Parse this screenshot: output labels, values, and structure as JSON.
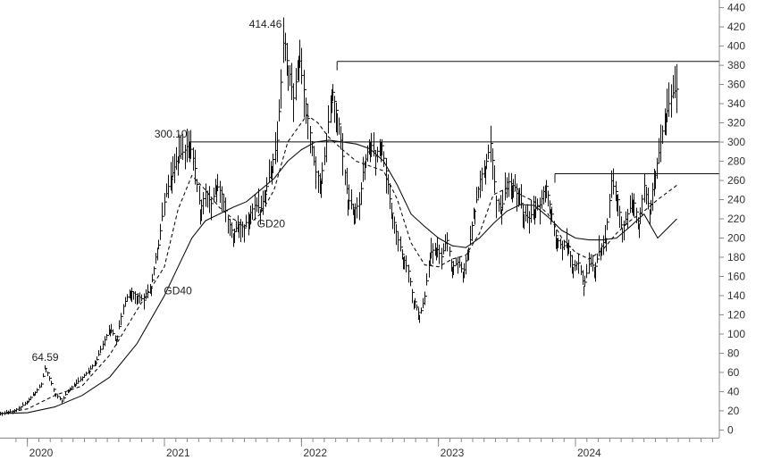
{
  "chart_data": {
    "type": "line",
    "title": "",
    "xlabel": "",
    "ylabel": "",
    "x_tick_labels": [
      "2020",
      "2021",
      "2022",
      "2023",
      "2024"
    ],
    "y_ticks": [
      0,
      20,
      40,
      60,
      80,
      100,
      120,
      140,
      160,
      180,
      200,
      220,
      240,
      260,
      280,
      300,
      320,
      340,
      360,
      380,
      400,
      420,
      440
    ],
    "ylim": [
      -8,
      448
    ],
    "xlim": [
      2019.8,
      2025.05
    ],
    "grid": false,
    "legend": "none",
    "colors": {
      "price": "#111111",
      "ma": "#111111",
      "levels": "#111111",
      "axis": "#888888"
    },
    "series": [
      {
        "name": "",
        "style": "ohlc-bars",
        "points": [
          [
            2019.8,
            17
          ],
          [
            2019.85,
            18
          ],
          [
            2019.9,
            20
          ],
          [
            2019.95,
            24
          ],
          [
            2020.0,
            30
          ],
          [
            2020.05,
            38
          ],
          [
            2020.1,
            48
          ],
          [
            2020.13,
            64.59
          ],
          [
            2020.17,
            50
          ],
          [
            2020.2,
            38
          ],
          [
            2020.25,
            30
          ],
          [
            2020.3,
            42
          ],
          [
            2020.35,
            48
          ],
          [
            2020.4,
            55
          ],
          [
            2020.45,
            62
          ],
          [
            2020.5,
            72
          ],
          [
            2020.55,
            90
          ],
          [
            2020.6,
            105
          ],
          [
            2020.65,
            95
          ],
          [
            2020.7,
            130
          ],
          [
            2020.75,
            145
          ],
          [
            2020.8,
            140
          ],
          [
            2020.85,
            135
          ],
          [
            2020.9,
            150
          ],
          [
            2020.95,
            190
          ],
          [
            2021.0,
            240
          ],
          [
            2021.05,
            265
          ],
          [
            2021.1,
            285
          ],
          [
            2021.15,
            292
          ],
          [
            2021.18,
            300.1
          ],
          [
            2021.22,
            275
          ],
          [
            2021.26,
            230
          ],
          [
            2021.3,
            250
          ],
          [
            2021.34,
            235
          ],
          [
            2021.38,
            255
          ],
          [
            2021.42,
            245
          ],
          [
            2021.46,
            220
          ],
          [
            2021.5,
            205
          ],
          [
            2021.54,
            215
          ],
          [
            2021.58,
            210
          ],
          [
            2021.62,
            225
          ],
          [
            2021.66,
            235
          ],
          [
            2021.7,
            230
          ],
          [
            2021.74,
            250
          ],
          [
            2021.78,
            275
          ],
          [
            2021.82,
            300
          ],
          [
            2021.85,
            360
          ],
          [
            2021.87,
            414.46
          ],
          [
            2021.9,
            380
          ],
          [
            2021.94,
            345
          ],
          [
            2021.98,
            390
          ],
          [
            2022.02,
            350
          ],
          [
            2022.06,
            310
          ],
          [
            2022.1,
            270
          ],
          [
            2022.14,
            260
          ],
          [
            2022.18,
            300
          ],
          [
            2022.22,
            355
          ],
          [
            2022.26,
            330
          ],
          [
            2022.3,
            285
          ],
          [
            2022.34,
            240
          ],
          [
            2022.38,
            230
          ],
          [
            2022.42,
            235
          ],
          [
            2022.46,
            280
          ],
          [
            2022.5,
            300
          ],
          [
            2022.54,
            285
          ],
          [
            2022.58,
            300
          ],
          [
            2022.62,
            265
          ],
          [
            2022.66,
            225
          ],
          [
            2022.7,
            200
          ],
          [
            2022.74,
            180
          ],
          [
            2022.78,
            165
          ],
          [
            2022.82,
            135
          ],
          [
            2022.86,
            120
          ],
          [
            2022.9,
            140
          ],
          [
            2022.94,
            185
          ],
          [
            2022.98,
            190
          ],
          [
            2023.02,
            180
          ],
          [
            2023.06,
            200
          ],
          [
            2023.1,
            170
          ],
          [
            2023.14,
            175
          ],
          [
            2023.18,
            165
          ],
          [
            2023.22,
            190
          ],
          [
            2023.26,
            230
          ],
          [
            2023.3,
            260
          ],
          [
            2023.34,
            275
          ],
          [
            2023.38,
            300
          ],
          [
            2023.42,
            240
          ],
          [
            2023.46,
            230
          ],
          [
            2023.5,
            260
          ],
          [
            2023.54,
            255
          ],
          [
            2023.58,
            250
          ],
          [
            2023.62,
            225
          ],
          [
            2023.66,
            220
          ],
          [
            2023.7,
            230
          ],
          [
            2023.74,
            235
          ],
          [
            2023.78,
            255
          ],
          [
            2023.82,
            230
          ],
          [
            2023.86,
            200
          ],
          [
            2023.9,
            190
          ],
          [
            2023.94,
            195
          ],
          [
            2023.98,
            170
          ],
          [
            2024.02,
            175
          ],
          [
            2024.06,
            150
          ],
          [
            2024.1,
            175
          ],
          [
            2024.14,
            170
          ],
          [
            2024.18,
            190
          ],
          [
            2024.22,
            200
          ],
          [
            2024.26,
            260
          ],
          [
            2024.3,
            245
          ],
          [
            2024.34,
            210
          ],
          [
            2024.38,
            225
          ],
          [
            2024.42,
            240
          ],
          [
            2024.46,
            215
          ],
          [
            2024.5,
            255
          ],
          [
            2024.54,
            230
          ],
          [
            2024.58,
            270
          ],
          [
            2024.62,
            300
          ],
          [
            2024.66,
            330
          ],
          [
            2024.7,
            350
          ],
          [
            2024.74,
            355
          ]
        ]
      },
      {
        "name": "GD20",
        "style": "dashed",
        "points": [
          [
            2019.8,
            17
          ],
          [
            2020.0,
            22
          ],
          [
            2020.2,
            36
          ],
          [
            2020.4,
            46
          ],
          [
            2020.6,
            78
          ],
          [
            2020.8,
            125
          ],
          [
            2021.0,
            170
          ],
          [
            2021.1,
            230
          ],
          [
            2021.2,
            265
          ],
          [
            2021.3,
            250
          ],
          [
            2021.4,
            232
          ],
          [
            2021.5,
            220
          ],
          [
            2021.6,
            212
          ],
          [
            2021.7,
            225
          ],
          [
            2021.8,
            250
          ],
          [
            2021.9,
            300
          ],
          [
            2022.0,
            320
          ],
          [
            2022.04,
            328
          ],
          [
            2022.12,
            320
          ],
          [
            2022.2,
            305
          ],
          [
            2022.3,
            292
          ],
          [
            2022.4,
            280
          ],
          [
            2022.5,
            275
          ],
          [
            2022.6,
            270
          ],
          [
            2022.7,
            240
          ],
          [
            2022.8,
            195
          ],
          [
            2022.9,
            172
          ],
          [
            2023.0,
            170
          ],
          [
            2023.1,
            178
          ],
          [
            2023.2,
            182
          ],
          [
            2023.3,
            205
          ],
          [
            2023.4,
            245
          ],
          [
            2023.5,
            252
          ],
          [
            2023.6,
            245
          ],
          [
            2023.7,
            238
          ],
          [
            2023.8,
            225
          ],
          [
            2023.9,
            200
          ],
          [
            2024.0,
            185
          ],
          [
            2024.1,
            178
          ],
          [
            2024.2,
            188
          ],
          [
            2024.3,
            205
          ],
          [
            2024.4,
            218
          ],
          [
            2024.5,
            228
          ],
          [
            2024.6,
            240
          ],
          [
            2024.74,
            255
          ]
        ]
      },
      {
        "name": "GD40",
        "style": "solid",
        "points": [
          [
            2019.8,
            17
          ],
          [
            2020.0,
            18
          ],
          [
            2020.2,
            24
          ],
          [
            2020.4,
            36
          ],
          [
            2020.6,
            55
          ],
          [
            2020.8,
            90
          ],
          [
            2021.0,
            140
          ],
          [
            2021.1,
            170
          ],
          [
            2021.2,
            200
          ],
          [
            2021.3,
            218
          ],
          [
            2021.4,
            225
          ],
          [
            2021.5,
            232
          ],
          [
            2021.6,
            238
          ],
          [
            2021.7,
            250
          ],
          [
            2021.8,
            262
          ],
          [
            2021.9,
            280
          ],
          [
            2022.0,
            292
          ],
          [
            2022.1,
            300
          ],
          [
            2022.2,
            302
          ],
          [
            2022.3,
            300
          ],
          [
            2022.4,
            298
          ],
          [
            2022.5,
            293
          ],
          [
            2022.6,
            280
          ],
          [
            2022.7,
            255
          ],
          [
            2022.8,
            225
          ],
          [
            2022.9,
            212
          ],
          [
            2023.0,
            200
          ],
          [
            2023.1,
            192
          ],
          [
            2023.2,
            190
          ],
          [
            2023.3,
            200
          ],
          [
            2023.4,
            215
          ],
          [
            2023.5,
            228
          ],
          [
            2023.6,
            235
          ],
          [
            2023.7,
            234
          ],
          [
            2023.8,
            222
          ],
          [
            2023.9,
            208
          ],
          [
            2024.0,
            200
          ],
          [
            2024.1,
            198
          ],
          [
            2024.2,
            198
          ],
          [
            2024.3,
            200
          ],
          [
            2024.4,
            212
          ],
          [
            2024.5,
            225
          ],
          [
            2024.6,
            200
          ],
          [
            2024.74,
            220
          ]
        ]
      }
    ],
    "reference_lines": [
      {
        "value": 300.1,
        "x_start": 2021.18,
        "x_end": 2025.05
      },
      {
        "value": 384,
        "x_start": 2022.26,
        "x_end": 2025.05
      },
      {
        "value": 267,
        "x_start": 2023.85,
        "x_end": 2025.05
      }
    ],
    "annotations": [
      {
        "text": "64.59",
        "x": 2020.13,
        "y": 64.59,
        "anchor": "above"
      },
      {
        "text": "300.10",
        "x": 2021.18,
        "y": 300.1,
        "anchor": "above-left"
      },
      {
        "text": "414.46",
        "x": 2021.87,
        "y": 414.46,
        "anchor": "above-left"
      },
      {
        "text": "GD20",
        "x": 2021.65,
        "y": 215,
        "anchor": "right"
      },
      {
        "text": "GD40",
        "x": 2020.97,
        "y": 145,
        "anchor": "right"
      }
    ]
  }
}
